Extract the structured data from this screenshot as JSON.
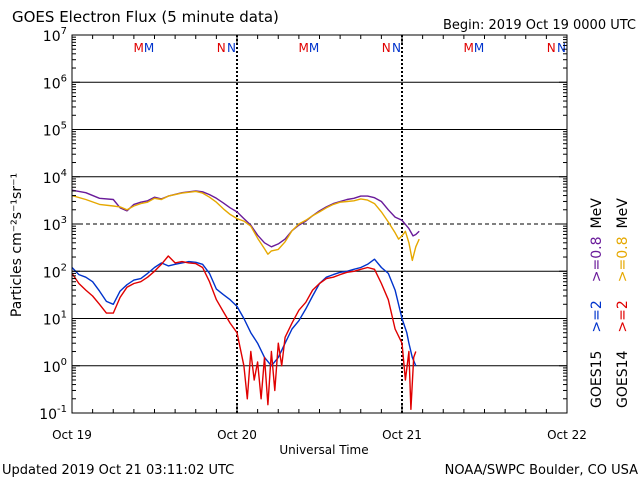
{
  "chart_data": {
    "type": "line",
    "title": "GOES Electron Flux (5 minute data)",
    "begin_label": "Begin: 2019 Oct 19 0000 UTC",
    "xlabel": "Universal Time",
    "ylabel": "Particles cm⁻²s⁻¹sr⁻¹",
    "y_log": true,
    "ylim": [
      0.1,
      10000000
    ],
    "y_ticks": [
      {
        "value": 10000000,
        "base": "10",
        "exp": "7"
      },
      {
        "value": 1000000,
        "base": "10",
        "exp": "6"
      },
      {
        "value": 100000,
        "base": "10",
        "exp": "5"
      },
      {
        "value": 10000,
        "base": "10",
        "exp": "4"
      },
      {
        "value": 1000,
        "base": "10",
        "exp": "3"
      },
      {
        "value": 100,
        "base": "10",
        "exp": "2"
      },
      {
        "value": 10,
        "base": "10",
        "exp": "1"
      },
      {
        "value": 1,
        "base": "10",
        "exp": "0"
      },
      {
        "value": 0.1,
        "base": "10",
        "exp": "-1"
      }
    ],
    "xlim": [
      0,
      72
    ],
    "x_unit": "hours since 2019 Oct 19 0000 UTC",
    "x_ticks": [
      {
        "value": 0,
        "label": "Oct 19"
      },
      {
        "value": 24,
        "label": "Oct 20"
      },
      {
        "value": 48,
        "label": "Oct 21"
      },
      {
        "value": 72,
        "label": "Oct 22"
      }
    ],
    "threshold_line": 1000,
    "day_dividers": [
      24,
      48
    ],
    "mn_markers": [
      {
        "x": 9.7,
        "letter": "M",
        "color": "#e00000"
      },
      {
        "x": 11.2,
        "letter": "M",
        "color": "#0033cc"
      },
      {
        "x": 21.7,
        "letter": "N",
        "color": "#e00000"
      },
      {
        "x": 23.2,
        "letter": "N",
        "color": "#0033cc"
      },
      {
        "x": 33.7,
        "letter": "M",
        "color": "#e00000"
      },
      {
        "x": 35.2,
        "letter": "M",
        "color": "#0033cc"
      },
      {
        "x": 45.7,
        "letter": "N",
        "color": "#e00000"
      },
      {
        "x": 47.2,
        "letter": "N",
        "color": "#0033cc"
      },
      {
        "x": 57.7,
        "letter": "M",
        "color": "#e00000"
      },
      {
        "x": 59.2,
        "letter": "M",
        "color": "#0033cc"
      },
      {
        "x": 69.7,
        "letter": "N",
        "color": "#e00000"
      },
      {
        "x": 71.2,
        "letter": "N",
        "color": "#0033cc"
      }
    ],
    "series": [
      {
        "name": "GOES15 >=0.8 MeV",
        "color": "#6a1b9a",
        "points": [
          [
            0,
            5200
          ],
          [
            2,
            4600
          ],
          [
            4,
            3500
          ],
          [
            6,
            3300
          ],
          [
            7,
            2200
          ],
          [
            8,
            1900
          ],
          [
            9,
            2600
          ],
          [
            10,
            2900
          ],
          [
            11,
            3100
          ],
          [
            12,
            3700
          ],
          [
            13,
            3400
          ],
          [
            14,
            3900
          ],
          [
            16,
            4600
          ],
          [
            18,
            5000
          ],
          [
            19,
            4800
          ],
          [
            20,
            4200
          ],
          [
            21,
            3500
          ],
          [
            22,
            2800
          ],
          [
            23,
            2200
          ],
          [
            24,
            1800
          ],
          [
            25,
            1300
          ],
          [
            26,
            950
          ],
          [
            27,
            580
          ],
          [
            28,
            400
          ],
          [
            29,
            330
          ],
          [
            30,
            380
          ],
          [
            31,
            480
          ],
          [
            32,
            720
          ],
          [
            33,
            950
          ],
          [
            34,
            1150
          ],
          [
            35,
            1500
          ],
          [
            36,
            1900
          ],
          [
            37,
            2300
          ],
          [
            38,
            2700
          ],
          [
            39,
            3000
          ],
          [
            40,
            3300
          ],
          [
            41,
            3500
          ],
          [
            42,
            3900
          ],
          [
            43,
            3900
          ],
          [
            44,
            3600
          ],
          [
            45,
            3000
          ],
          [
            46,
            2000
          ],
          [
            47,
            1400
          ],
          [
            48,
            1200
          ],
          [
            49,
            800
          ],
          [
            49.6,
            560
          ],
          [
            50,
            600
          ],
          [
            50.5,
            700
          ]
        ]
      },
      {
        "name": "GOES14 >=0.8 MeV",
        "color": "#e6a800",
        "points": [
          [
            0,
            4000
          ],
          [
            2,
            3300
          ],
          [
            4,
            2600
          ],
          [
            6,
            2400
          ],
          [
            7,
            2300
          ],
          [
            8,
            2000
          ],
          [
            9,
            2400
          ],
          [
            10,
            2700
          ],
          [
            11,
            2900
          ],
          [
            12,
            3500
          ],
          [
            13,
            3300
          ],
          [
            14,
            3900
          ],
          [
            16,
            4500
          ],
          [
            18,
            4900
          ],
          [
            19,
            4500
          ],
          [
            20,
            3700
          ],
          [
            21,
            2900
          ],
          [
            22,
            2100
          ],
          [
            23,
            1600
          ],
          [
            24,
            1300
          ],
          [
            25,
            1150
          ],
          [
            26,
            900
          ],
          [
            27,
            500
          ],
          [
            28,
            300
          ],
          [
            28.5,
            230
          ],
          [
            29,
            270
          ],
          [
            30,
            290
          ],
          [
            31,
            420
          ],
          [
            32,
            720
          ],
          [
            33,
            1000
          ],
          [
            34,
            1200
          ],
          [
            35,
            1500
          ],
          [
            36,
            1800
          ],
          [
            37,
            2200
          ],
          [
            38,
            2600
          ],
          [
            39,
            2900
          ],
          [
            40,
            3000
          ],
          [
            41,
            3100
          ],
          [
            42,
            3400
          ],
          [
            43,
            3200
          ],
          [
            44,
            2700
          ],
          [
            45,
            1800
          ],
          [
            46,
            1100
          ],
          [
            47,
            650
          ],
          [
            47.5,
            480
          ],
          [
            48,
            560
          ],
          [
            48.5,
            700
          ],
          [
            49,
            400
          ],
          [
            49.5,
            170
          ],
          [
            50,
            330
          ],
          [
            50.5,
            480
          ]
        ]
      },
      {
        "name": "GOES15 >=2 MeV",
        "color": "#0033cc",
        "points": [
          [
            0,
            120
          ],
          [
            1,
            85
          ],
          [
            2,
            75
          ],
          [
            3,
            60
          ],
          [
            4,
            38
          ],
          [
            5,
            23
          ],
          [
            6,
            20
          ],
          [
            7,
            38
          ],
          [
            8,
            52
          ],
          [
            9,
            65
          ],
          [
            10,
            70
          ],
          [
            11,
            90
          ],
          [
            12,
            120
          ],
          [
            13,
            150
          ],
          [
            14,
            130
          ],
          [
            15,
            140
          ],
          [
            16,
            150
          ],
          [
            17,
            160
          ],
          [
            18,
            155
          ],
          [
            19,
            140
          ],
          [
            20,
            90
          ],
          [
            21,
            42
          ],
          [
            22,
            32
          ],
          [
            23,
            25
          ],
          [
            24,
            18
          ],
          [
            25,
            10
          ],
          [
            26,
            5
          ],
          [
            27,
            3
          ],
          [
            28,
            1.5
          ],
          [
            29,
            1
          ],
          [
            30,
            1.5
          ],
          [
            31,
            3
          ],
          [
            32,
            6
          ],
          [
            33,
            9
          ],
          [
            34,
            16
          ],
          [
            35,
            30
          ],
          [
            36,
            55
          ],
          [
            37,
            75
          ],
          [
            38,
            85
          ],
          [
            39,
            95
          ],
          [
            40,
            100
          ],
          [
            41,
            110
          ],
          [
            42,
            120
          ],
          [
            43,
            140
          ],
          [
            44,
            180
          ],
          [
            45,
            120
          ],
          [
            46,
            90
          ],
          [
            47,
            40
          ],
          [
            48,
            10
          ],
          [
            48.7,
            5
          ],
          [
            49,
            3
          ],
          [
            49.5,
            1.5
          ],
          [
            50,
            1
          ]
        ]
      },
      {
        "name": "GOES14 >=2 MeV",
        "color": "#e00000",
        "points": [
          [
            0,
            90
          ],
          [
            1,
            55
          ],
          [
            2,
            40
          ],
          [
            3,
            30
          ],
          [
            4,
            20
          ],
          [
            5,
            13
          ],
          [
            6,
            13
          ],
          [
            7,
            28
          ],
          [
            8,
            46
          ],
          [
            9,
            55
          ],
          [
            10,
            60
          ],
          [
            11,
            75
          ],
          [
            12,
            100
          ],
          [
            13,
            140
          ],
          [
            14,
            210
          ],
          [
            15,
            150
          ],
          [
            16,
            160
          ],
          [
            17,
            150
          ],
          [
            18,
            145
          ],
          [
            19,
            120
          ],
          [
            20,
            60
          ],
          [
            21,
            25
          ],
          [
            22,
            14
          ],
          [
            23,
            8
          ],
          [
            24,
            5
          ],
          [
            25,
            1
          ],
          [
            25.5,
            0.2
          ],
          [
            26,
            2
          ],
          [
            26.5,
            0.5
          ],
          [
            27,
            1.2
          ],
          [
            27.5,
            0.2
          ],
          [
            28,
            1.5
          ],
          [
            28.5,
            0.15
          ],
          [
            29,
            2
          ],
          [
            29.5,
            0.3
          ],
          [
            30,
            3
          ],
          [
            30.5,
            1
          ],
          [
            31,
            4
          ],
          [
            32,
            8
          ],
          [
            33,
            15
          ],
          [
            34,
            22
          ],
          [
            35,
            40
          ],
          [
            36,
            55
          ],
          [
            37,
            70
          ],
          [
            38,
            75
          ],
          [
            39,
            85
          ],
          [
            40,
            95
          ],
          [
            41,
            100
          ],
          [
            42,
            110
          ],
          [
            43,
            120
          ],
          [
            44,
            110
          ],
          [
            45,
            55
          ],
          [
            46,
            25
          ],
          [
            47,
            6
          ],
          [
            48,
            3
          ],
          [
            48.5,
            0.5
          ],
          [
            49,
            2
          ],
          [
            49.3,
            0.12
          ],
          [
            49.7,
            1.5
          ],
          [
            50,
            2
          ]
        ]
      }
    ],
    "legend": {
      "position": "right",
      "columns": [
        {
          "satellite": "GOES15",
          "entries": [
            {
              "label": ">=2",
              "color": "#0033cc"
            },
            {
              "label": ">=0.8",
              "color": "#6a1b9a"
            }
          ],
          "unit": "MeV"
        },
        {
          "satellite": "GOES14",
          "entries": [
            {
              "label": ">=2",
              "color": "#e00000"
            },
            {
              "label": ">=0.8",
              "color": "#e6a800"
            }
          ],
          "unit": "MeV"
        }
      ]
    }
  },
  "footer": {
    "updated": "Updated 2019 Oct 21 03:11:02 UTC",
    "source": "NOAA/SWPC Boulder, CO USA"
  }
}
